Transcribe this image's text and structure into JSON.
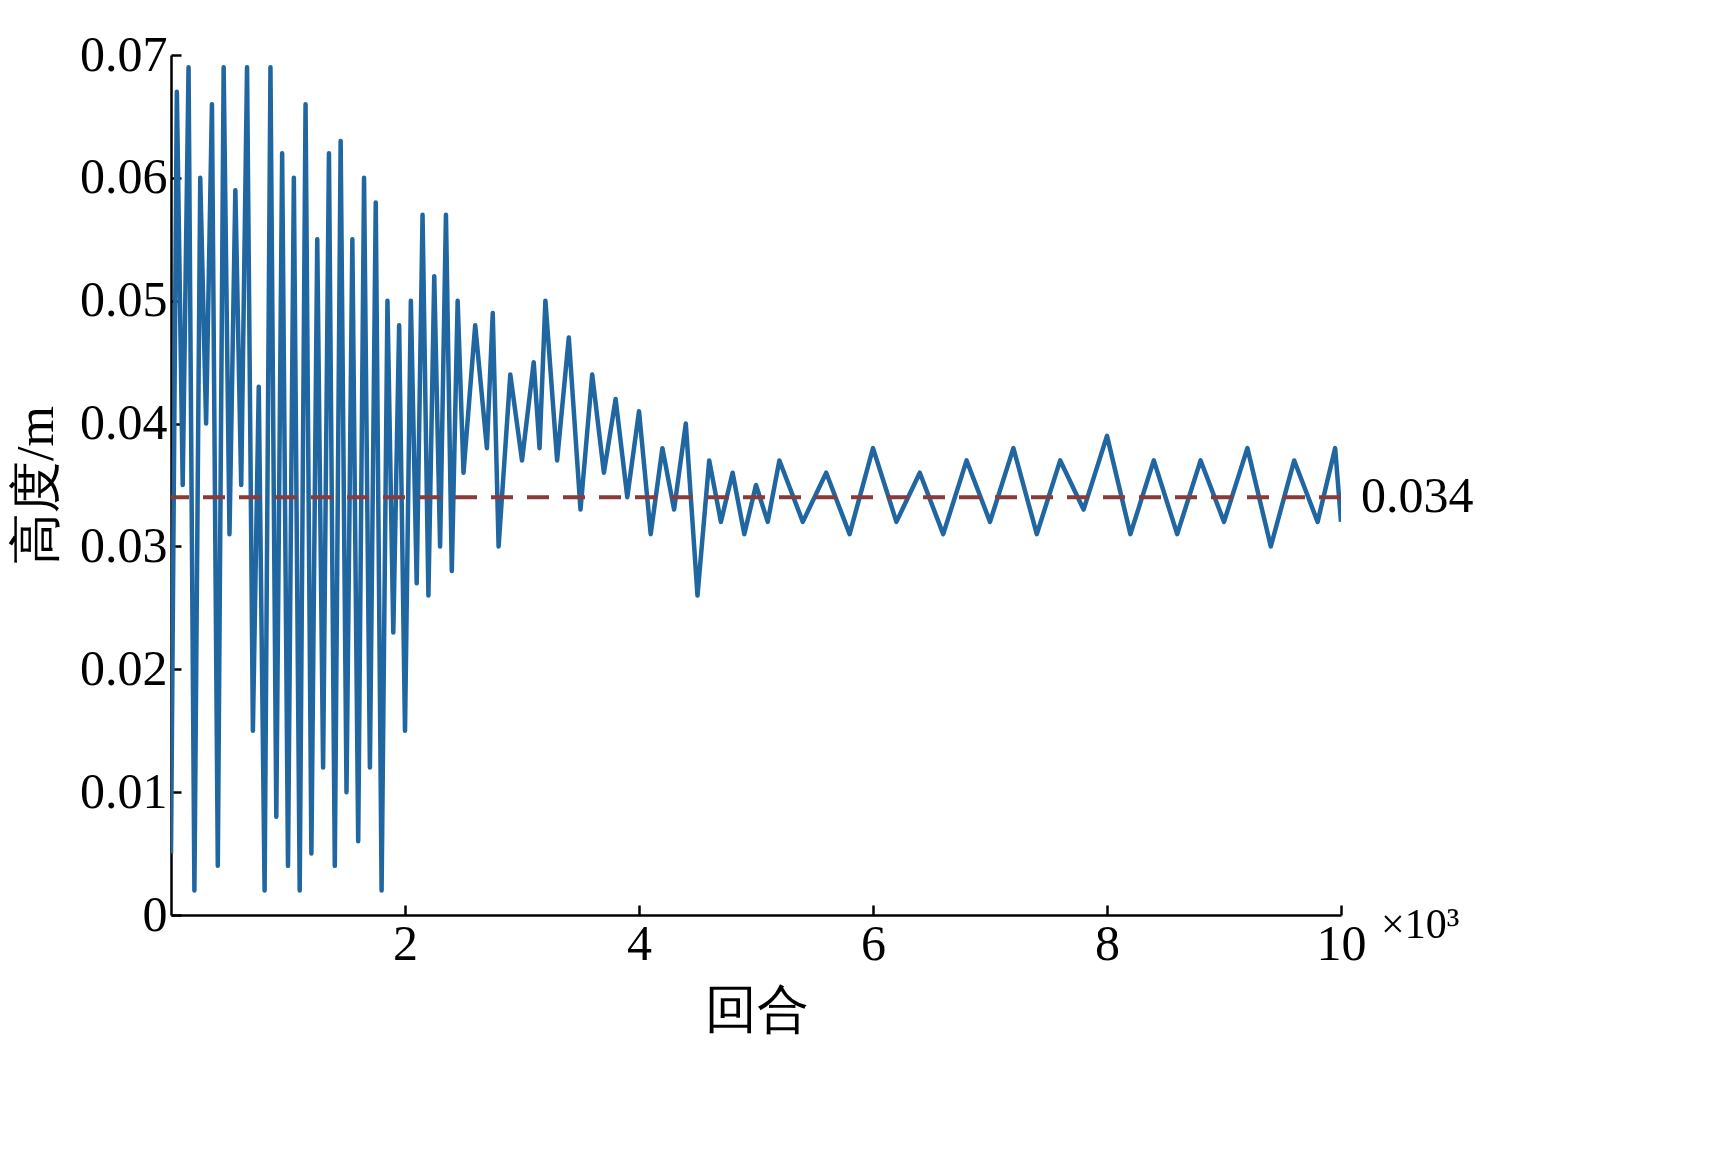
{
  "chart_data": {
    "type": "line",
    "xlabel": "回合",
    "ylabel": "高度/m",
    "annotations": [
      "×10³"
    ],
    "xlim": [
      0,
      10
    ],
    "xticks": [
      2,
      4,
      6,
      8,
      10
    ],
    "ylim": [
      0,
      0.07
    ],
    "yticks": [
      0,
      0.01,
      0.02,
      0.03,
      0.04,
      0.05,
      0.06,
      0.07
    ],
    "grid": false,
    "line_style": "solid",
    "ref_lines": [
      {
        "axis": "y",
        "value": 0.034,
        "label": "0.034",
        "color": "#8b3a3a",
        "line_style": "dashed"
      }
    ],
    "x": [
      0,
      0.05,
      0.1,
      0.15,
      0.2,
      0.25,
      0.3,
      0.35,
      0.4,
      0.45,
      0.5,
      0.55,
      0.6,
      0.65,
      0.7,
      0.75,
      0.8,
      0.85,
      0.9,
      0.95,
      1.0,
      1.05,
      1.1,
      1.15,
      1.2,
      1.25,
      1.3,
      1.35,
      1.4,
      1.45,
      1.5,
      1.55,
      1.6,
      1.65,
      1.7,
      1.75,
      1.8,
      1.85,
      1.9,
      1.95,
      2.0,
      2.05,
      2.1,
      2.15,
      2.2,
      2.25,
      2.3,
      2.35,
      2.4,
      2.45,
      2.5,
      2.6,
      2.7,
      2.75,
      2.8,
      2.9,
      3.0,
      3.1,
      3.15,
      3.2,
      3.3,
      3.4,
      3.5,
      3.6,
      3.7,
      3.8,
      3.9,
      4.0,
      4.1,
      4.2,
      4.3,
      4.4,
      4.5,
      4.6,
      4.7,
      4.8,
      4.9,
      5.0,
      5.1,
      5.2,
      5.4,
      5.6,
      5.8,
      6.0,
      6.2,
      6.4,
      6.6,
      6.8,
      7.0,
      7.2,
      7.4,
      7.6,
      7.8,
      8.0,
      8.2,
      8.4,
      8.6,
      8.8,
      9.0,
      9.2,
      9.4,
      9.6,
      9.8,
      9.95,
      10.0
    ],
    "series": [
      {
        "color": "#2066a0",
        "values": [
          0.005,
          0.067,
          0.035,
          0.069,
          0.002,
          0.06,
          0.04,
          0.066,
          0.004,
          0.069,
          0.031,
          0.059,
          0.035,
          0.069,
          0.015,
          0.043,
          0.002,
          0.069,
          0.008,
          0.062,
          0.004,
          0.06,
          0.002,
          0.066,
          0.005,
          0.055,
          0.012,
          0.062,
          0.004,
          0.063,
          0.01,
          0.055,
          0.006,
          0.06,
          0.012,
          0.058,
          0.002,
          0.05,
          0.023,
          0.048,
          0.015,
          0.05,
          0.027,
          0.057,
          0.026,
          0.052,
          0.03,
          0.057,
          0.028,
          0.05,
          0.036,
          0.048,
          0.038,
          0.049,
          0.03,
          0.044,
          0.037,
          0.045,
          0.038,
          0.05,
          0.037,
          0.047,
          0.033,
          0.044,
          0.036,
          0.042,
          0.034,
          0.041,
          0.031,
          0.038,
          0.033,
          0.04,
          0.026,
          0.037,
          0.032,
          0.036,
          0.031,
          0.035,
          0.032,
          0.037,
          0.032,
          0.036,
          0.031,
          0.038,
          0.032,
          0.036,
          0.031,
          0.037,
          0.032,
          0.038,
          0.031,
          0.037,
          0.033,
          0.039,
          0.031,
          0.037,
          0.031,
          0.037,
          0.032,
          0.038,
          0.03,
          0.037,
          0.032,
          0.038,
          0.032
        ]
      }
    ]
  }
}
